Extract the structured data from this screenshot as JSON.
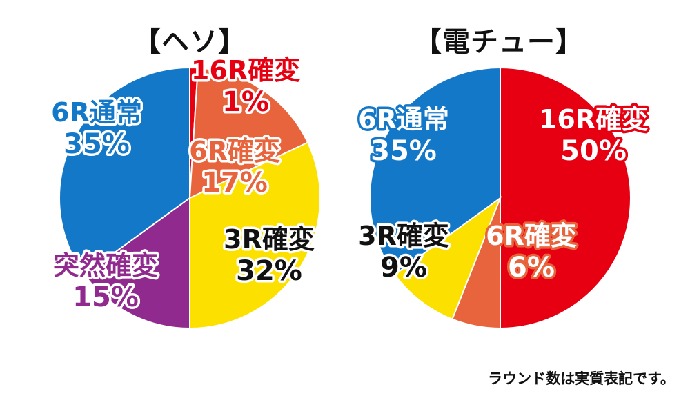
{
  "colors": {
    "blue": "#1478c8",
    "red": "#e60012",
    "orange": "#e8643c",
    "yellow": "#fbe000",
    "purple": "#912a8e",
    "black": "#111111",
    "white": "#ffffff"
  },
  "chart_data": [
    {
      "type": "pie",
      "title": "【ヘソ】",
      "start_angle_deg": 0,
      "slices": [
        {
          "name": "16R確変",
          "value": 1,
          "label": "1%",
          "color": "#e60012",
          "text_color": "#e60012",
          "outline_color": "#ffffff"
        },
        {
          "name": "6R確変",
          "value": 17,
          "label": "17%",
          "color": "#e8643c",
          "text_color": "#e8643c",
          "outline_color": "#ffffff"
        },
        {
          "name": "3R確変",
          "value": 32,
          "label": "32%",
          "color": "#fbe000",
          "text_color": "#111111",
          "outline_color": "#ffffff"
        },
        {
          "name": "突然確変",
          "value": 15,
          "label": "15%",
          "color": "#912a8e",
          "text_color": "#912a8e",
          "outline_color": "#ffffff"
        },
        {
          "name": "6R通常",
          "value": 35,
          "label": "35%",
          "color": "#1478c8",
          "text_color": "#1478c8",
          "outline_color": "#ffffff"
        }
      ]
    },
    {
      "type": "pie",
      "title": "【電チュー】",
      "start_angle_deg": 0,
      "slices": [
        {
          "name": "16R確変",
          "value": 50,
          "label": "50%",
          "color": "#e60012",
          "text_color": "#ffffff",
          "outline_color": "#e60012"
        },
        {
          "name": "6R確変",
          "value": 6,
          "label": "6%",
          "color": "#e8643c",
          "text_color": "#ffffff",
          "outline_color": "#e8643c"
        },
        {
          "name": "3R確変",
          "value": 9,
          "label": "9%",
          "color": "#fbe000",
          "text_color": "#111111",
          "outline_color": "#ffffff"
        },
        {
          "name": "6R通常",
          "value": 35,
          "label": "35%",
          "color": "#1478c8",
          "text_color": "#ffffff",
          "outline_color": "#1478c8"
        }
      ]
    }
  ],
  "footnote": "ラウンド数は実質表記です。"
}
